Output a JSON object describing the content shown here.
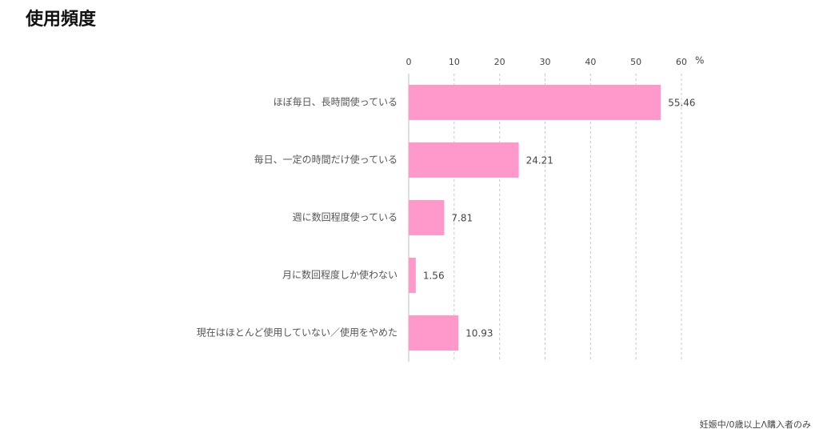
{
  "chart_data": {
    "type": "bar",
    "orientation": "horizontal",
    "title": "使用頻度",
    "categories": [
      "ほぼ毎日、長時間使っている",
      "毎日、一定の時間だけ使っている",
      "週に数回程度使っている",
      "月に数回程度しか使わない",
      "現在はほとんど使用していない／使用をやめた"
    ],
    "values": [
      55.46,
      24.21,
      7.81,
      1.56,
      10.93
    ],
    "color": "#ff99cc",
    "xlim": [
      0,
      60
    ],
    "xticks": [
      0,
      10,
      20,
      30,
      40,
      50,
      60
    ],
    "x_unit": "%",
    "grid": true,
    "note": "妊娠中/0歳以上Λ購入者のみ"
  }
}
